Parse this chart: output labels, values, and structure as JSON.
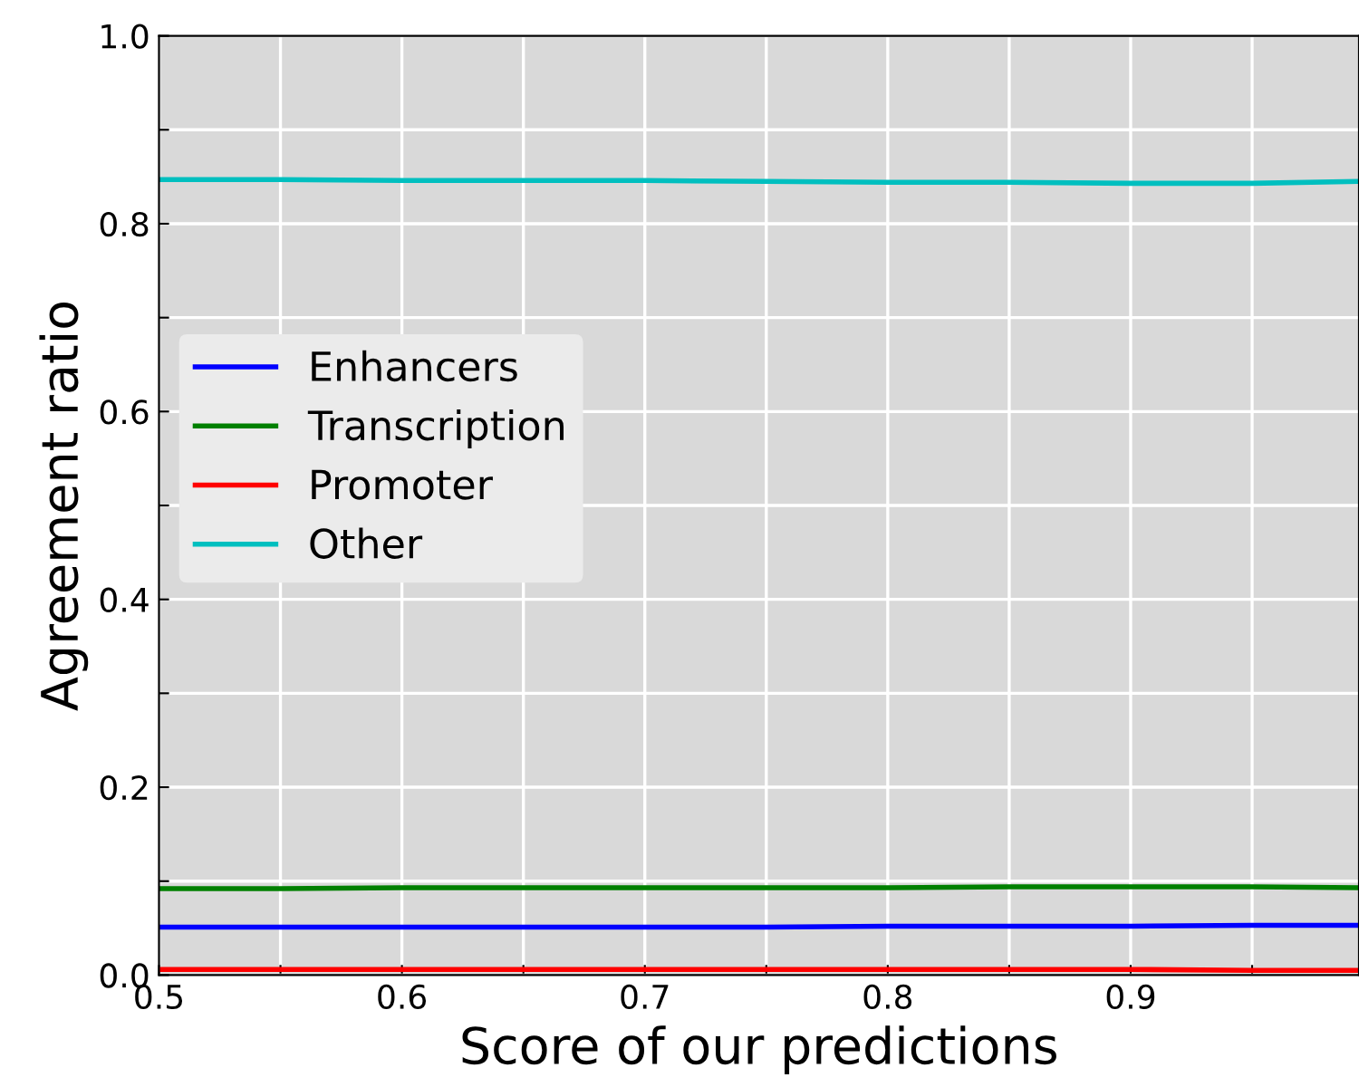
{
  "chart_data": {
    "type": "line",
    "xlabel": "Score of our predictions",
    "ylabel": "Agreement ratio",
    "x": [
      0.5,
      0.55,
      0.6,
      0.65,
      0.7,
      0.75,
      0.8,
      0.85,
      0.9,
      0.95,
      0.994
    ],
    "series": [
      {
        "name": "Enhancers",
        "color": "#0000ff",
        "values": [
          0.051,
          0.051,
          0.051,
          0.051,
          0.051,
          0.051,
          0.052,
          0.052,
          0.052,
          0.053,
          0.053
        ]
      },
      {
        "name": "Transcription",
        "color": "#008000",
        "values": [
          0.092,
          0.092,
          0.093,
          0.093,
          0.093,
          0.093,
          0.093,
          0.094,
          0.094,
          0.094,
          0.093
        ]
      },
      {
        "name": "Promoter",
        "color": "#ff0000",
        "values": [
          0.006,
          0.006,
          0.006,
          0.006,
          0.006,
          0.006,
          0.006,
          0.006,
          0.006,
          0.005,
          0.005
        ]
      },
      {
        "name": "Other",
        "color": "#00bfbf",
        "values": [
          0.847,
          0.847,
          0.846,
          0.846,
          0.846,
          0.845,
          0.844,
          0.844,
          0.843,
          0.843,
          0.845
        ]
      }
    ],
    "xlim": [
      0.5,
      0.994
    ],
    "ylim": [
      0.0,
      1.0
    ],
    "xticks": [
      0.5,
      {
        "value": 0.55,
        "label": null
      },
      0.6,
      {
        "value": 0.65,
        "label": null
      },
      0.7,
      {
        "value": 0.75,
        "label": null
      },
      0.8,
      {
        "value": 0.85,
        "label": null
      },
      0.9,
      {
        "value": 0.95,
        "label": null
      }
    ],
    "yticks": [
      {
        "value": 0.0,
        "label": "0.0"
      },
      {
        "value": 0.1,
        "label": null
      },
      0.2,
      {
        "value": 0.3,
        "label": null
      },
      0.4,
      {
        "value": 0.5,
        "label": null
      },
      0.6,
      {
        "value": 0.7,
        "label": null
      },
      0.8,
      {
        "value": 0.9,
        "label": null
      },
      {
        "value": 1.0,
        "label": "1.0"
      }
    ],
    "grid": true,
    "legend": "center left",
    "marker": "none",
    "line_style": "solid"
  }
}
